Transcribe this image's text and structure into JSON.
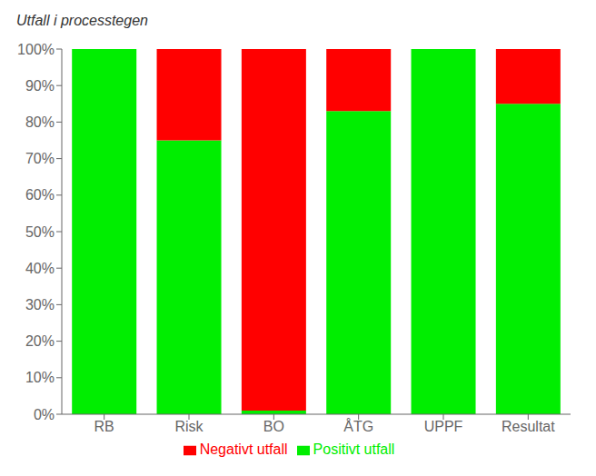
{
  "chart_data": {
    "type": "bar",
    "title": "Utfall i processtegen",
    "categories": [
      "RB",
      "Risk",
      "BO",
      "ÅTG",
      "UPPF",
      "Resultat"
    ],
    "series": [
      {
        "name": "Positivt utfall",
        "color": "#00ee00",
        "values": [
          100,
          75,
          1,
          83,
          100,
          85
        ]
      },
      {
        "name": "Negativt utfall",
        "color": "#ff0000",
        "values": [
          0,
          25,
          99,
          17,
          0,
          15
        ]
      }
    ],
    "stacked": true,
    "ylim": [
      0,
      100
    ],
    "yticks": [
      {
        "value": 0,
        "label": "0%"
      },
      {
        "value": 10,
        "label": "10%"
      },
      {
        "value": 20,
        "label": "20%"
      },
      {
        "value": 30,
        "label": "30%"
      },
      {
        "value": 40,
        "label": "40%"
      },
      {
        "value": 50,
        "label": "50%"
      },
      {
        "value": 60,
        "label": "60%"
      },
      {
        "value": 70,
        "label": "70%"
      },
      {
        "value": 80,
        "label": "80%"
      },
      {
        "value": 90,
        "label": "90%"
      },
      {
        "value": 100,
        "label": "100%"
      }
    ],
    "grid": false,
    "legend": "bottom"
  }
}
